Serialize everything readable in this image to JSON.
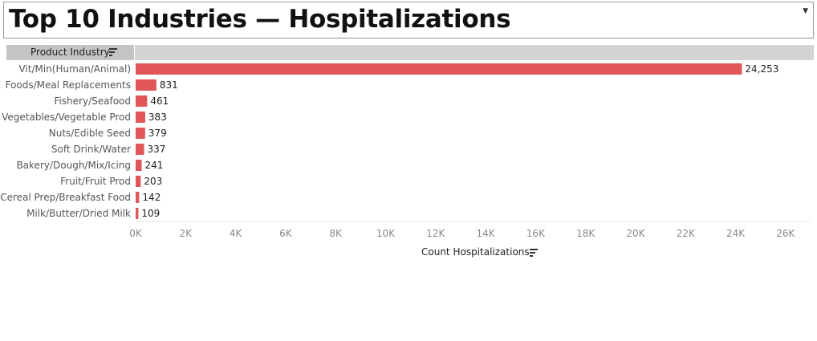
{
  "title": "Top 10 Industries — Hospitalizations",
  "header": {
    "row_header_label": "Product Industry"
  },
  "x_axis_title": "Count Hospitalizations",
  "colors": {
    "bar": "#e15759",
    "header_bg": "#d4d4d4",
    "header_cell_bg": "#c4c4c4"
  },
  "icons": {
    "sort": "sort-descending-icon",
    "dropdown": "dropdown-arrow-icon"
  },
  "chart_data": {
    "type": "bar",
    "orientation": "horizontal",
    "title": "Top 10 Industries — Hospitalizations",
    "ylabel": "Product Industry",
    "xlabel": "Count Hospitalizations",
    "categories": [
      "Vit/Min(Human/Animal)",
      "Foods/Meal Replacements",
      "Fishery/Seafood",
      "Vegetables/Vegetable Prod",
      "Nuts/Edible Seed",
      "Soft Drink/Water",
      "Bakery/Dough/Mix/Icing",
      "Fruit/Fruit Prod",
      "Cereal Prep/Breakfast Food",
      "Milk/Butter/Dried Milk"
    ],
    "values": [
      24253,
      831,
      461,
      383,
      379,
      337,
      241,
      203,
      142,
      109
    ],
    "value_labels": [
      "24,253",
      "831",
      "461",
      "383",
      "379",
      "337",
      "241",
      "203",
      "142",
      "109"
    ],
    "xlim": [
      0,
      27000
    ],
    "xticks": [
      0,
      2000,
      4000,
      6000,
      8000,
      10000,
      12000,
      14000,
      16000,
      18000,
      20000,
      22000,
      24000,
      26000
    ],
    "xtick_labels": [
      "0K",
      "2K",
      "4K",
      "6K",
      "8K",
      "10K",
      "12K",
      "14K",
      "16K",
      "18K",
      "20K",
      "22K",
      "24K",
      "26K"
    ],
    "grid": false,
    "legend": "none"
  }
}
